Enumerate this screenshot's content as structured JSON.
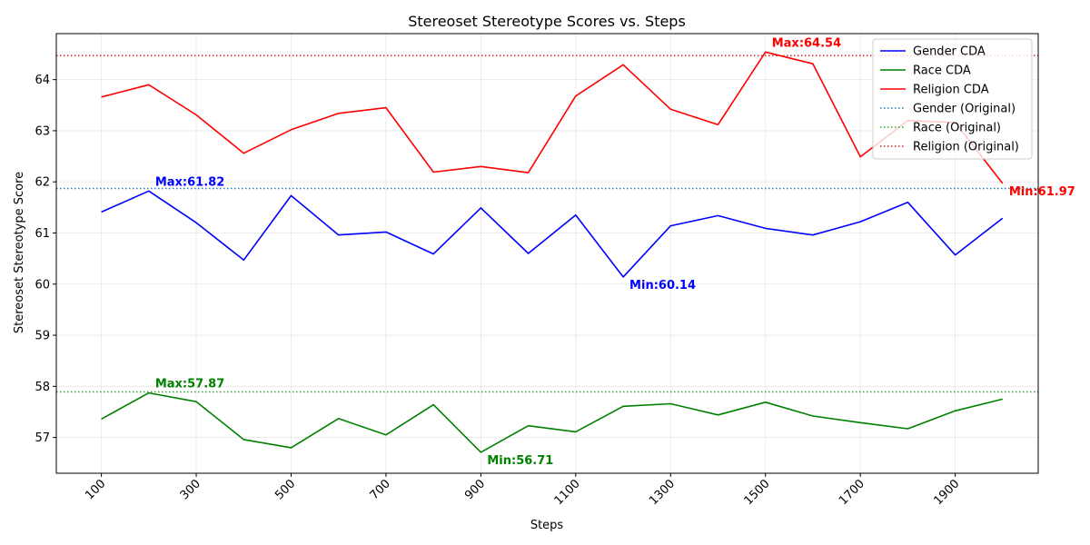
{
  "chart_data": {
    "type": "line",
    "title": "Stereoset Stereotype Scores vs. Steps",
    "xlabel": "Steps",
    "ylabel": "Stereoset Stereotype Score",
    "xlim": [
      5,
      2075
    ],
    "ylim": [
      56.3,
      64.9
    ],
    "x_ticks": [
      100,
      300,
      500,
      700,
      900,
      1100,
      1300,
      1500,
      1700,
      1900
    ],
    "y_ticks": [
      57,
      58,
      59,
      60,
      61,
      62,
      63,
      64
    ],
    "grid": true,
    "legend_position": "top-right",
    "x": [
      100,
      200,
      300,
      400,
      500,
      600,
      700,
      800,
      900,
      1000,
      1100,
      1200,
      1300,
      1400,
      1500,
      1600,
      1700,
      1800,
      1900,
      2000
    ],
    "series": [
      {
        "name": "Gender CDA",
        "color": "#0000ff",
        "style": "solid",
        "values": [
          61.41,
          61.82,
          61.2,
          60.47,
          61.73,
          60.96,
          61.02,
          60.59,
          61.49,
          60.6,
          61.35,
          60.14,
          61.14,
          61.34,
          61.09,
          60.96,
          61.22,
          61.6,
          60.57,
          61.29
        ]
      },
      {
        "name": "Race CDA",
        "color": "#008000",
        "style": "solid",
        "values": [
          57.36,
          57.87,
          57.7,
          56.96,
          56.8,
          57.37,
          57.05,
          57.64,
          56.71,
          57.23,
          57.11,
          57.61,
          57.66,
          57.44,
          57.69,
          57.42,
          57.29,
          57.17,
          57.52,
          57.75
        ]
      },
      {
        "name": "Religion CDA",
        "color": "#ff0000",
        "style": "solid",
        "values": [
          63.66,
          63.9,
          63.31,
          62.56,
          63.02,
          63.34,
          63.45,
          62.19,
          62.3,
          62.18,
          63.68,
          64.29,
          63.42,
          63.12,
          64.54,
          64.31,
          62.49,
          63.2,
          63.16,
          61.97
        ]
      }
    ],
    "reference_lines": [
      {
        "name": "Gender (Original)",
        "color": "#1f77b4",
        "style": "dotted",
        "value": 61.87
      },
      {
        "name": "Race (Original)",
        "color": "#2ca02c",
        "style": "dotted",
        "value": 57.89
      },
      {
        "name": "Religion (Original)",
        "color": "#d62728",
        "style": "dotted",
        "value": 64.47
      }
    ],
    "annotations": [
      {
        "text": "Max:61.82",
        "x": 200,
        "y": 61.82,
        "color": "#0000ff"
      },
      {
        "text": "Min:60.14",
        "x": 1200,
        "y": 60.14,
        "color": "#0000ff"
      },
      {
        "text": "Max:57.87",
        "x": 200,
        "y": 57.87,
        "color": "#008000"
      },
      {
        "text": "Min:56.71",
        "x": 900,
        "y": 56.71,
        "color": "#008000"
      },
      {
        "text": "Max:64.54",
        "x": 1500,
        "y": 64.54,
        "color": "#ff0000"
      },
      {
        "text": "Min:61.97",
        "x": 2000,
        "y": 61.97,
        "color": "#ff0000"
      }
    ]
  }
}
